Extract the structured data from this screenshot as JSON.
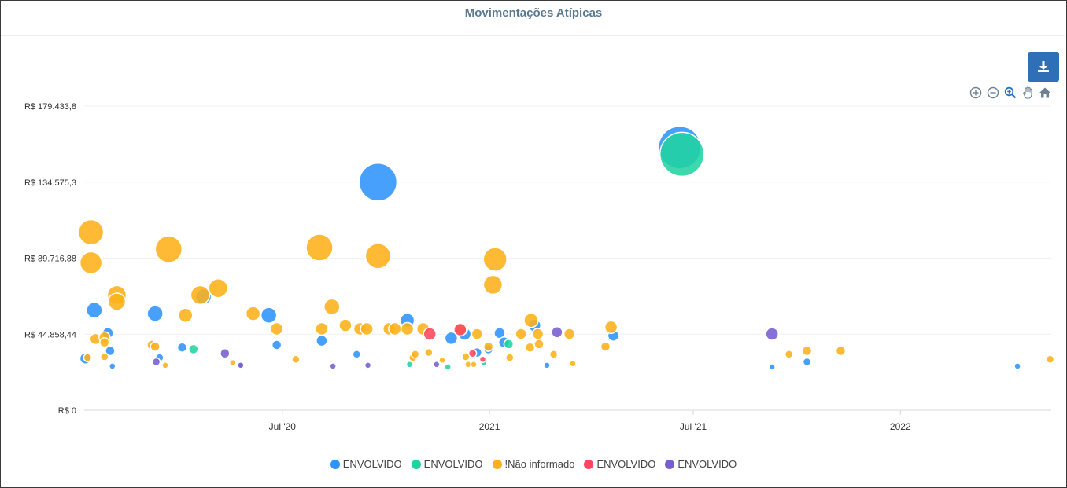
{
  "title": "Movimentações Atípicas",
  "toolbar": {
    "download_icon": "download-icon",
    "zoom_in_icon": "zoom-in-icon",
    "zoom_out_icon": "zoom-out-icon",
    "selection_zoom_icon": "selection-zoom-icon",
    "pan_icon": "pan-hand-icon",
    "reset_icon": "home-icon"
  },
  "chart_data": {
    "type": "scatter",
    "subtype": "bubble",
    "title": "Movimentações Atípicas",
    "xlabel": "",
    "ylabel": "",
    "xlim": [
      "2020-01-07",
      "2022-05-15"
    ],
    "ylim": [
      0,
      179433.8
    ],
    "y_ticks": [
      0,
      44858.44,
      89716.88,
      134575.3,
      179433.8
    ],
    "y_tick_labels": [
      "R$ 0",
      "R$ 44.858,44",
      "R$ 89.716,88",
      "R$ 134.575,3",
      "R$ 179.433,8"
    ],
    "x_ticks": [
      "2020-07-01",
      "2021-01-01",
      "2021-07-01",
      "2022-01-01"
    ],
    "x_tick_labels": [
      "Jul '20",
      "2021",
      "Jul '21",
      "2022"
    ],
    "grid": "horizontal",
    "legend_position": "bottom-center",
    "series": [
      {
        "name": "ENVOLVIDO",
        "color": "#2e93fa",
        "points": [
          [
            "2020-01-08",
            30500,
            7
          ],
          [
            "2020-01-16",
            59000,
            10
          ],
          [
            "2020-01-28",
            45500,
            7
          ],
          [
            "2020-01-30",
            35000,
            6
          ],
          [
            "2020-02-01",
            26000,
            4
          ],
          [
            "2020-03-10",
            57000,
            10
          ],
          [
            "2020-03-14",
            31000,
            5
          ],
          [
            "2020-04-03",
            37000,
            6
          ],
          [
            "2020-04-22",
            67000,
            10
          ],
          [
            "2020-05-25",
            27000,
            4
          ],
          [
            "2020-06-19",
            56000,
            10
          ],
          [
            "2020-06-26",
            38500,
            6
          ],
          [
            "2020-08-05",
            41000,
            7
          ],
          [
            "2020-09-05",
            33000,
            5
          ],
          [
            "2020-09-24",
            134575,
            24
          ],
          [
            "2020-10-20",
            53000,
            9
          ],
          [
            "2020-11-28",
            42500,
            8
          ],
          [
            "2020-12-10",
            45000,
            8
          ],
          [
            "2020-12-21",
            34000,
            6
          ],
          [
            "2020-12-31",
            36000,
            6
          ],
          [
            "2021-01-10",
            45500,
            7
          ],
          [
            "2021-01-14",
            40000,
            7
          ],
          [
            "2021-02-10",
            50000,
            8
          ],
          [
            "2021-02-21",
            26500,
            4
          ],
          [
            "2021-04-21",
            44000,
            7
          ],
          [
            "2021-06-19",
            155000,
            27
          ],
          [
            "2021-09-09",
            25500,
            4
          ],
          [
            "2021-10-10",
            28500,
            5
          ],
          [
            "2022-04-15",
            26000,
            4
          ]
        ]
      },
      {
        "name": "ENVOLVIDO",
        "color": "#22d3a0",
        "points": [
          [
            "2020-04-13",
            36000,
            6
          ],
          [
            "2020-10-22",
            27000,
            4
          ],
          [
            "2020-11-25",
            25500,
            4
          ],
          [
            "2020-12-27",
            28000,
            4
          ],
          [
            "2021-01-18",
            39000,
            6
          ],
          [
            "2021-06-21",
            151000,
            28
          ]
        ]
      },
      {
        "name": "!Não informado",
        "color": "#feb019",
        "points": [
          [
            "2020-01-10",
            31000,
            5
          ],
          [
            "2020-01-13",
            105000,
            16
          ],
          [
            "2020-01-13",
            87000,
            14
          ],
          [
            "2020-01-17",
            42000,
            7
          ],
          [
            "2020-01-25",
            43000,
            7
          ],
          [
            "2020-01-25",
            40000,
            6
          ],
          [
            "2020-01-25",
            31500,
            5
          ],
          [
            "2020-02-05",
            68000,
            12
          ],
          [
            "2020-02-05",
            64000,
            11
          ],
          [
            "2020-03-07",
            38500,
            6
          ],
          [
            "2020-03-10",
            37500,
            6
          ],
          [
            "2020-03-19",
            26500,
            4
          ],
          [
            "2020-03-22",
            95000,
            17
          ],
          [
            "2020-04-06",
            56000,
            9
          ],
          [
            "2020-04-19",
            68000,
            12
          ],
          [
            "2020-05-05",
            72000,
            12
          ],
          [
            "2020-05-18",
            28000,
            4
          ],
          [
            "2020-06-05",
            57000,
            9
          ],
          [
            "2020-06-26",
            48000,
            8
          ],
          [
            "2020-07-13",
            30000,
            5
          ],
          [
            "2020-08-03",
            96000,
            17
          ],
          [
            "2020-08-05",
            48000,
            8
          ],
          [
            "2020-08-14",
            61000,
            10
          ],
          [
            "2020-08-26",
            50000,
            8
          ],
          [
            "2020-09-08",
            48000,
            8
          ],
          [
            "2020-09-14",
            48000,
            8
          ],
          [
            "2020-09-24",
            91000,
            16
          ],
          [
            "2020-10-04",
            48000,
            8
          ],
          [
            "2020-10-09",
            48000,
            8
          ],
          [
            "2020-10-20",
            48000,
            8
          ],
          [
            "2020-10-25",
            31000,
            5
          ],
          [
            "2020-10-27",
            33000,
            5
          ],
          [
            "2020-11-03",
            48000,
            8
          ],
          [
            "2020-11-08",
            34000,
            5
          ],
          [
            "2020-11-20",
            29500,
            4
          ],
          [
            "2020-12-07",
            48000,
            8
          ],
          [
            "2020-12-11",
            31500,
            5
          ],
          [
            "2020-12-13",
            27000,
            4
          ],
          [
            "2020-12-18",
            27000,
            4
          ],
          [
            "2020-12-21",
            45000,
            7
          ],
          [
            "2020-12-31",
            37500,
            6
          ],
          [
            "2021-01-04",
            74000,
            12
          ],
          [
            "2021-01-06",
            89000,
            15
          ],
          [
            "2021-01-19",
            31000,
            5
          ],
          [
            "2021-01-29",
            45000,
            7
          ],
          [
            "2021-02-06",
            37000,
            6
          ],
          [
            "2021-02-07",
            53000,
            9
          ],
          [
            "2021-02-13",
            45000,
            7
          ],
          [
            "2021-02-14",
            39000,
            6
          ],
          [
            "2021-02-27",
            33000,
            5
          ],
          [
            "2021-03-13",
            45000,
            7
          ],
          [
            "2021-03-16",
            27500,
            4
          ],
          [
            "2021-04-14",
            37500,
            6
          ],
          [
            "2021-04-19",
            49000,
            8
          ],
          [
            "2021-09-24",
            33000,
            5
          ],
          [
            "2021-10-10",
            35000,
            6
          ],
          [
            "2021-11-09",
            35000,
            6
          ],
          [
            "2022-05-14",
            30000,
            5
          ]
        ]
      },
      {
        "name": "ENVOLVIDO",
        "color": "#ff4560",
        "points": [
          [
            "2020-11-09",
            45000,
            8
          ],
          [
            "2020-12-06",
            47500,
            8
          ],
          [
            "2020-12-17",
            33500,
            5
          ],
          [
            "2020-12-26",
            30000,
            4
          ]
        ]
      },
      {
        "name": "ENVOLVIDO",
        "color": "#775dd0",
        "points": [
          [
            "2020-03-11",
            28500,
            5
          ],
          [
            "2020-05-11",
            33500,
            6
          ],
          [
            "2020-05-25",
            26500,
            4
          ],
          [
            "2020-08-15",
            26000,
            4
          ],
          [
            "2020-09-15",
            26500,
            4
          ],
          [
            "2020-11-15",
            27000,
            4
          ],
          [
            "2021-03-02",
            46000,
            7
          ],
          [
            "2021-09-09",
            45000,
            8
          ]
        ]
      }
    ]
  }
}
